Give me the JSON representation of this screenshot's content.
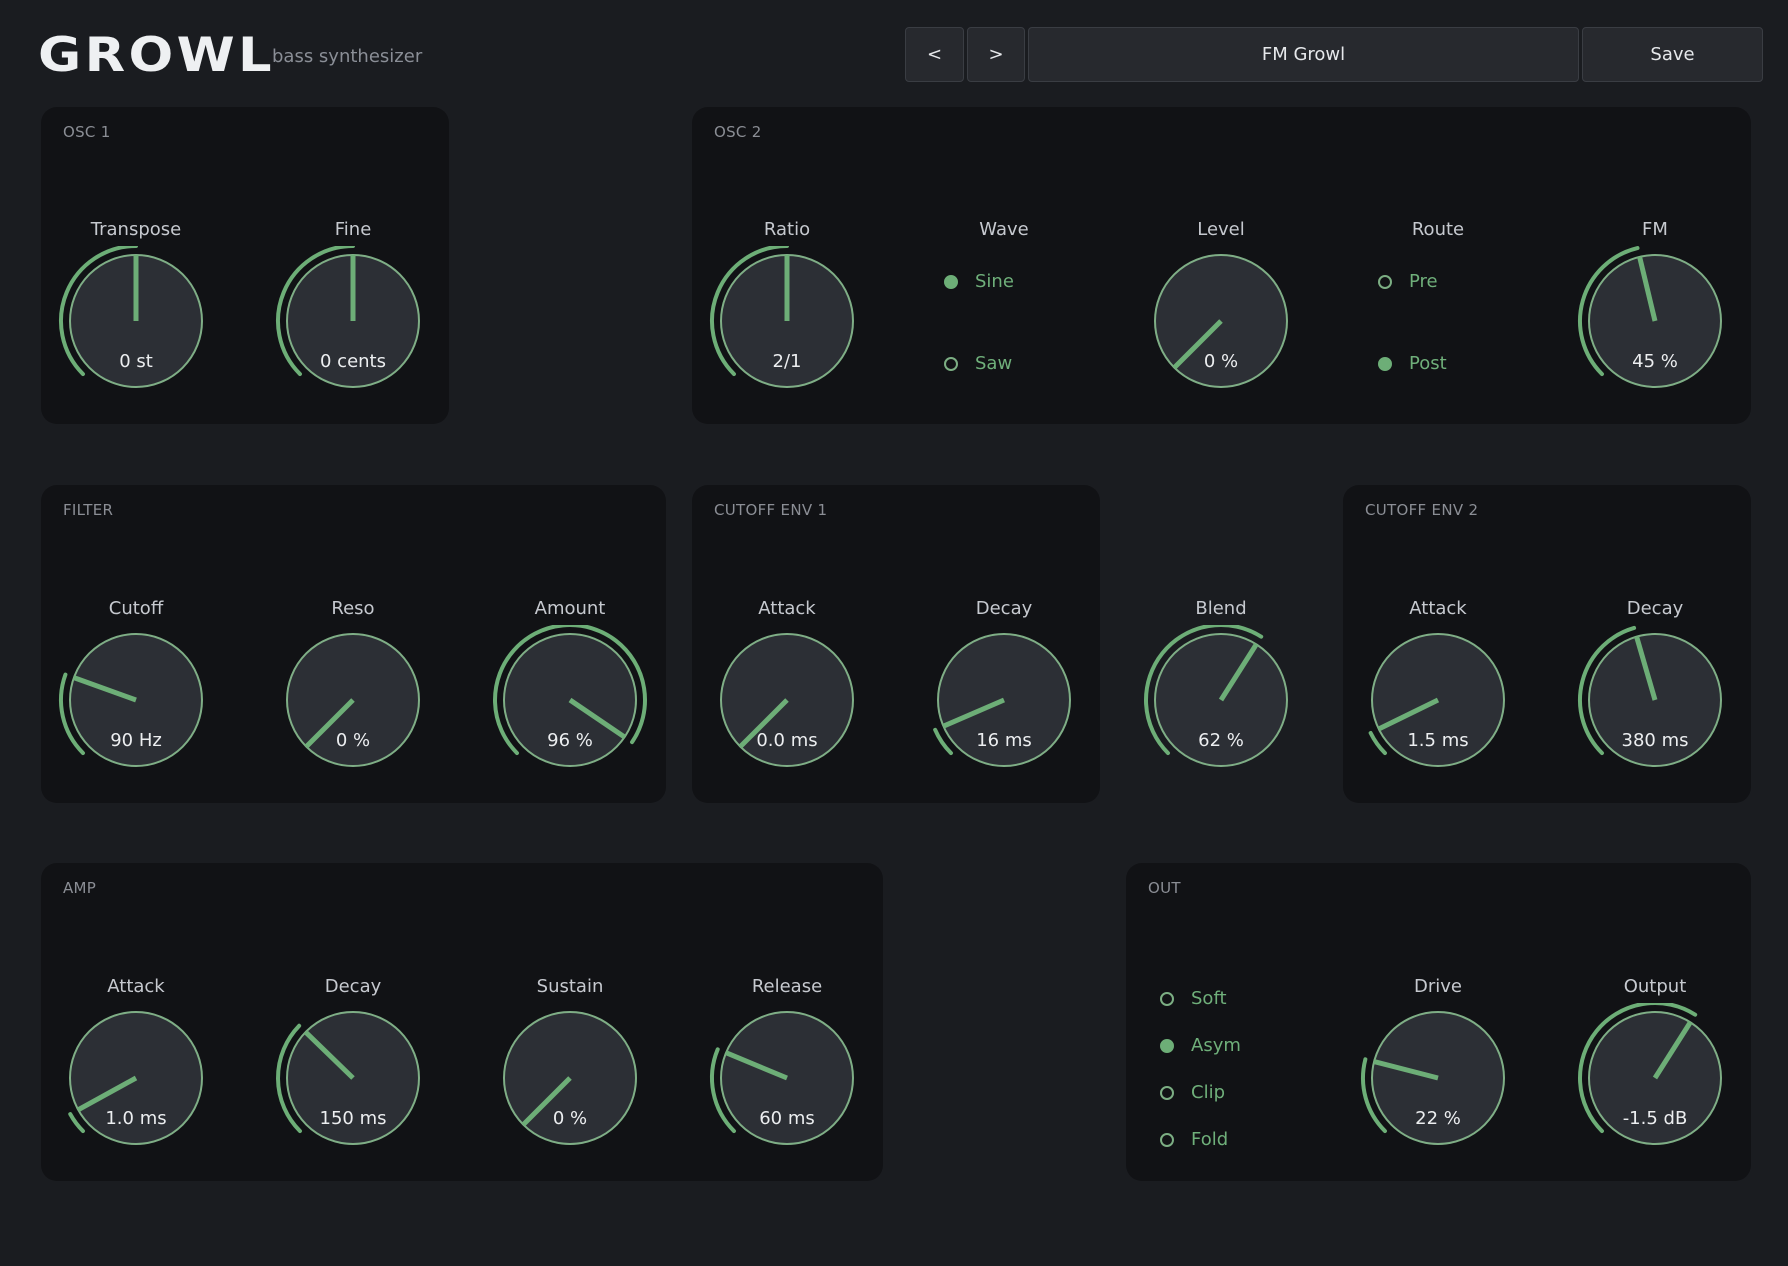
{
  "header": {
    "logo": "GROWL",
    "subtitle": "bass synthesizer",
    "prev_label": "<",
    "next_label": ">",
    "preset_name": "FM Growl",
    "save_label": "Save"
  },
  "theme": {
    "accent": "#6dae77",
    "knob_face": "#2c2f35",
    "panel": "#111215",
    "background": "#1a1c20"
  },
  "panels": {
    "osc1": "OSC 1",
    "osc2": "OSC 2",
    "filter": "FILTER",
    "cutoff_env1": "CUTOFF ENV 1",
    "cutoff_env2": "CUTOFF ENV 2",
    "amp": "AMP",
    "out": "OUT"
  },
  "knobs": {
    "osc1_transpose": {
      "label": "Transpose",
      "value": "0 st",
      "position": 0.5
    },
    "osc1_fine": {
      "label": "Fine",
      "value": "0 cents",
      "position": 0.5
    },
    "osc2_ratio": {
      "label": "Ratio",
      "value": "2/1",
      "position": 0.5
    },
    "osc2_level": {
      "label": "Level",
      "value": "0 %",
      "position": 0.0
    },
    "osc2_fm": {
      "label": "FM",
      "value": "45 %",
      "position": 0.45
    },
    "filter_cutoff": {
      "label": "Cutoff",
      "value": "90 Hz",
      "position": 0.24
    },
    "filter_reso": {
      "label": "Reso",
      "value": "0 %",
      "position": 0.0
    },
    "filter_amount": {
      "label": "Amount",
      "value": "96 %",
      "position": 0.96
    },
    "env1_attack": {
      "label": "Attack",
      "value": "0.0 ms",
      "position": 0.0
    },
    "env1_decay": {
      "label": "Decay",
      "value": "16 ms",
      "position": 0.08
    },
    "blend": {
      "label": "Blend",
      "value": "62 %",
      "position": 0.62
    },
    "env2_attack": {
      "label": "Attack",
      "value": "1.5 ms",
      "position": 0.07
    },
    "env2_decay": {
      "label": "Decay",
      "value": "380 ms",
      "position": 0.44
    },
    "amp_attack": {
      "label": "Attack",
      "value": "1.0 ms",
      "position": 0.06
    },
    "amp_decay": {
      "label": "Decay",
      "value": "150 ms",
      "position": 0.33
    },
    "amp_sustain": {
      "label": "Sustain",
      "value": "0 %",
      "position": 0.0
    },
    "amp_release": {
      "label": "Release",
      "value": "60 ms",
      "position": 0.25
    },
    "out_drive": {
      "label": "Drive",
      "value": "22 %",
      "position": 0.22
    },
    "out_output": {
      "label": "Output",
      "value": "-1.5 dB",
      "position": 0.62
    }
  },
  "osc2_wave": {
    "label": "Wave",
    "options": [
      "Sine",
      "Saw"
    ],
    "selected": "Sine"
  },
  "osc2_route": {
    "label": "Route",
    "options": [
      "Pre",
      "Post"
    ],
    "selected": "Post"
  },
  "out_shape": {
    "options": [
      "Soft",
      "Asym",
      "Clip",
      "Fold"
    ],
    "selected": "Asym"
  }
}
